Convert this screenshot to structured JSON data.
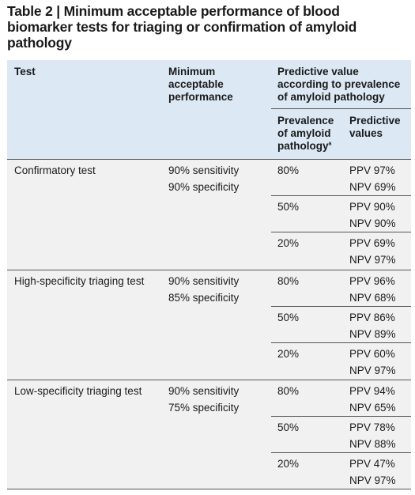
{
  "title": {
    "line1": "Table 2 | Minimum acceptable performance of blood",
    "line2": "biomarker tests for triaging or confirmation of amyloid",
    "line3": "pathology"
  },
  "headers": {
    "test": "Test",
    "min_perf_l1": "Minimum",
    "min_perf_l2": "acceptable",
    "min_perf_l3": "performance",
    "pred_l1": "Predictive value",
    "pred_l2": "according to prevalence",
    "pred_l3": "of amyloid pathology",
    "prev_l1": "Prevalence",
    "prev_l2": "of amyloid",
    "prev_l3": "pathology",
    "prev_footnote": "a",
    "pv_l1": "Predictive",
    "pv_l2": "values"
  },
  "rows": [
    {
      "test": "Confirmatory test",
      "sensitivity": "90% sensitivity",
      "specificity": "90% specificity",
      "sub": [
        {
          "prevalence": "80%",
          "ppv": "PPV 97%",
          "npv": "NPV 69%"
        },
        {
          "prevalence": "50%",
          "ppv": "PPV 90%",
          "npv": "NPV 90%"
        },
        {
          "prevalence": "20%",
          "ppv": "PPV 69%",
          "npv": "NPV 97%"
        }
      ]
    },
    {
      "test": "High-specificity triaging test",
      "sensitivity": "90% sensitivity",
      "specificity": "85% specificity",
      "sub": [
        {
          "prevalence": "80%",
          "ppv": "PPV 96%",
          "npv": "NPV 68%"
        },
        {
          "prevalence": "50%",
          "ppv": "PPV 86%",
          "npv": "NPV 89%"
        },
        {
          "prevalence": "20%",
          "ppv": "PPV 60%",
          "npv": "NPV 97%"
        }
      ]
    },
    {
      "test": "Low-specificity triaging test",
      "sensitivity": "90% sensitivity",
      "specificity": "75% specificity",
      "sub": [
        {
          "prevalence": "80%",
          "ppv": "PPV 94%",
          "npv": "NPV 65%"
        },
        {
          "prevalence": "50%",
          "ppv": "PPV 78%",
          "npv": "NPV 88%"
        },
        {
          "prevalence": "20%",
          "ppv": "PPV 47%",
          "npv": "NPV 97%"
        }
      ]
    }
  ],
  "colors": {
    "header_bg": "#dce9f4",
    "body_bg": "#f1f1f1",
    "rule": "#555555"
  }
}
